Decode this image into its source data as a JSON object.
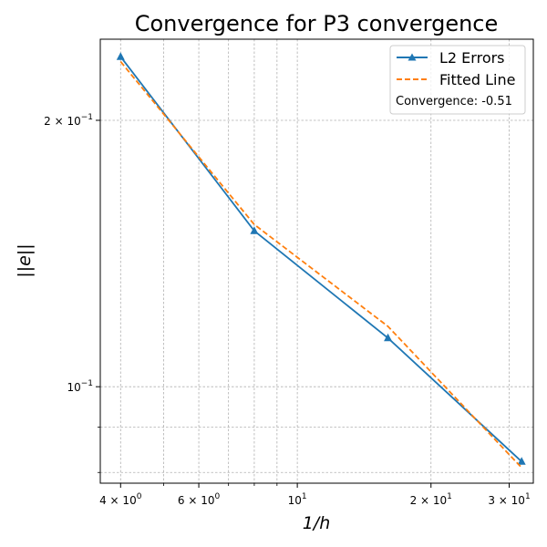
{
  "chart_data": {
    "type": "line",
    "title": "Convergence for P3 convergence",
    "xlabel": "1/h",
    "ylabel": "||e||",
    "xscale": "log",
    "yscale": "log",
    "xlim": [
      3.6,
      34
    ],
    "ylim": [
      0.0778,
      0.247
    ],
    "grid": true,
    "legend_position": "top-right",
    "x_ticks": [
      {
        "value": 4,
        "base": "4",
        "exp": "0"
      },
      {
        "value": 6,
        "base": "6",
        "exp": "0"
      },
      {
        "value": 10,
        "base": "10",
        "exp": "1"
      },
      {
        "value": 20,
        "base": "2",
        "exp": "1"
      },
      {
        "value": 30,
        "base": "3",
        "exp": "1"
      }
    ],
    "x_minor_ticks": [
      5,
      7,
      8,
      9
    ],
    "y_ticks": [
      {
        "value": 0.1,
        "base": "10",
        "exp": "−1"
      },
      {
        "value": 0.2,
        "base": "2",
        "exp": "−1"
      }
    ],
    "y_minor_ticks": [
      0.08,
      0.09
    ],
    "times_sign": "×",
    "series": [
      {
        "name": "L2 Errors",
        "style": "solid-triangle",
        "color": "#1f77b4",
        "x": [
          4,
          8,
          16,
          32
        ],
        "y": [
          0.236,
          0.15,
          0.1135,
          0.0823
        ]
      },
      {
        "name": "Fitted Line",
        "style": "dashed",
        "color": "#ff7f0e",
        "x": [
          4,
          8,
          16,
          32
        ],
        "y": [
          0.233,
          0.1525,
          0.117,
          0.081
        ]
      }
    ],
    "annotation": "Convergence: -0.51"
  }
}
